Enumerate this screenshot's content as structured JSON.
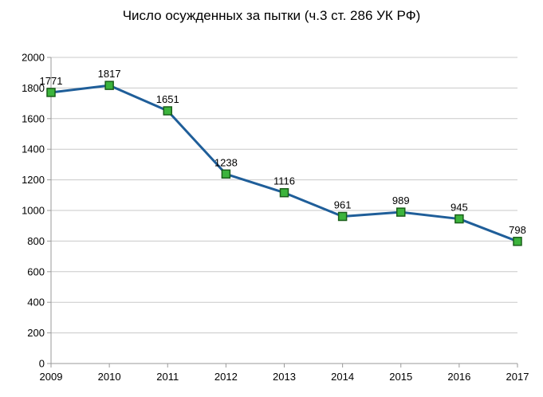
{
  "chart_data": {
    "type": "line",
    "title": "Число осужденных за пытки (ч.3 ст. 286 УК РФ)",
    "xlabel": "",
    "ylabel": "",
    "categories": [
      "2009",
      "2010",
      "2011",
      "2012",
      "2013",
      "2014",
      "2015",
      "2016",
      "2017"
    ],
    "series": [
      {
        "values": [
          1771,
          1817,
          1651,
          1238,
          1116,
          961,
          989,
          945,
          798
        ]
      }
    ],
    "data_labels": [
      "1771",
      "1817",
      "1651",
      "1238",
      "1116",
      "961",
      "989",
      "945",
      "798"
    ],
    "ylim": [
      0,
      2000
    ],
    "yticks": [
      0,
      200,
      400,
      600,
      800,
      1000,
      1200,
      1400,
      1600,
      1800,
      2000
    ],
    "ytick_labels": [
      "0",
      "200",
      "400",
      "600",
      "800",
      "1000",
      "1200",
      "1400",
      "1600",
      "1800",
      "2000"
    ],
    "grid": true,
    "legend": "none",
    "colors": {
      "line": "#1f5e99",
      "marker_fill": "#3cb43c",
      "marker_stroke": "#1a5e1a",
      "grid": "#c8c8c8",
      "axis": "#9a9a9a"
    }
  }
}
